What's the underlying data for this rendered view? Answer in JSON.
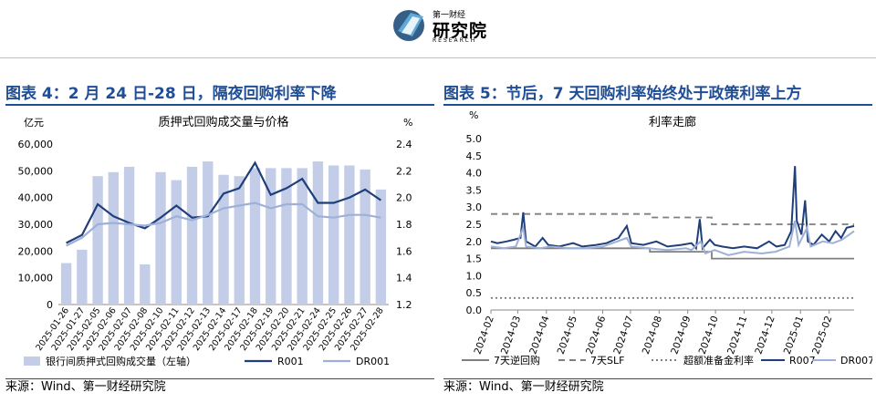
{
  "header": {
    "logo_icon": "globe-book-icon",
    "logo_small": "第一财经",
    "logo_main": "研究院",
    "logo_en": "RESEARCH"
  },
  "left": {
    "title": "图表 4：2 月 24 日-28 日，隔夜回购利率下降",
    "source": "来源：Wind、第一财经研究院",
    "chart_data": {
      "type": "bar",
      "title": "质押式回购成交量与价格",
      "y_left_unit": "亿元",
      "y_right_unit": "%",
      "y_left_ticks": [
        "0",
        "10,000",
        "20,000",
        "30,000",
        "40,000",
        "50,000",
        "60,000"
      ],
      "y_right_ticks": [
        "1.2",
        "1.4",
        "1.6",
        "1.8",
        "2.0",
        "2.2",
        "2.4"
      ],
      "ylim_left": [
        0,
        60000
      ],
      "ylim_right": [
        1.2,
        2.4
      ],
      "categories": [
        "2025-01-26",
        "2025-01-27",
        "2025-02-05",
        "2025-02-06",
        "2025-02-07",
        "2025-02-08",
        "2025-02-10",
        "2025-02-11",
        "2025-02-12",
        "2025-02-13",
        "2025-02-14",
        "2025-02-17",
        "2025-02-18",
        "2025-02-19",
        "2025-02-20",
        "2025-02-21",
        "2025-02-24",
        "2025-02-25",
        "2025-02-26",
        "2025-02-27",
        "2025-02-28"
      ],
      "series": [
        {
          "name": "银行间质押式回购成交量（左轴）",
          "type": "bar",
          "axis": "left",
          "color": "#c3cde8",
          "values": [
            15500,
            20500,
            48000,
            49500,
            51500,
            15000,
            49500,
            46500,
            51500,
            53500,
            48500,
            48000,
            51000,
            51000,
            51000,
            51000,
            53500,
            52000,
            52000,
            50500,
            43000
          ]
        },
        {
          "name": "R001",
          "type": "line",
          "axis": "right",
          "color": "#1f3f7a",
          "values": [
            1.66,
            1.72,
            1.95,
            1.86,
            1.81,
            1.77,
            1.85,
            1.94,
            1.85,
            1.86,
            2.03,
            2.07,
            2.26,
            2.02,
            2.07,
            2.14,
            1.96,
            1.96,
            2.0,
            2.06,
            1.98
          ]
        },
        {
          "name": "DR001",
          "type": "line",
          "axis": "right",
          "color": "#9fb0d8",
          "values": [
            1.64,
            1.7,
            1.8,
            1.81,
            1.8,
            1.79,
            1.81,
            1.86,
            1.83,
            1.87,
            1.92,
            1.94,
            1.96,
            1.92,
            1.95,
            1.95,
            1.86,
            1.85,
            1.87,
            1.87,
            1.85
          ]
        }
      ]
    }
  },
  "right": {
    "title": "图表 5：节后，7 天回购利率始终处于政策利率上方",
    "source": "来源：Wind、第一财经研究院",
    "chart_data": {
      "type": "line",
      "title": "利率走廊",
      "y_unit": "%",
      "y_ticks": [
        "0.0",
        "0.5",
        "1.0",
        "1.5",
        "2.0",
        "2.5",
        "3.0",
        "3.5",
        "4.0",
        "4.5",
        "5.0"
      ],
      "ylim": [
        0,
        5
      ],
      "x_ticks": [
        "2024-02",
        "2024-03",
        "2024-04",
        "2024-05",
        "2024-06",
        "2024-07",
        "2024-08",
        "2024-09",
        "2024-10",
        "2024-11",
        "2024-12",
        "2025-01",
        "2025-02"
      ],
      "series": [
        {
          "name": "7天逆回购",
          "style": "solid",
          "color": "#7f7f7f",
          "points": [
            [
              "2024-02-01",
              1.8
            ],
            [
              "2024-07-22",
              1.8
            ],
            [
              "2024-07-22",
              1.7
            ],
            [
              "2024-09-27",
              1.7
            ],
            [
              "2024-09-27",
              1.5
            ],
            [
              "2025-02-28",
              1.5
            ]
          ]
        },
        {
          "name": "7天SLF",
          "style": "dashed",
          "color": "#7f7f7f",
          "points": [
            [
              "2024-02-01",
              2.8
            ],
            [
              "2024-07-22",
              2.8
            ],
            [
              "2024-07-22",
              2.7
            ],
            [
              "2024-09-27",
              2.7
            ],
            [
              "2024-09-27",
              2.5
            ],
            [
              "2025-02-28",
              2.5
            ]
          ]
        },
        {
          "name": "超额准备金利率",
          "style": "dotted",
          "color": "#7f7f7f",
          "points": [
            [
              "2024-02-01",
              0.35
            ],
            [
              "2025-02-28",
              0.35
            ]
          ]
        },
        {
          "name": "R007",
          "style": "solid",
          "color": "#1f3f7a",
          "points": [
            [
              "2024-02-01",
              2.0
            ],
            [
              "2024-02-08",
              1.95
            ],
            [
              "2024-02-18",
              2.0
            ],
            [
              "2024-02-26",
              2.05
            ],
            [
              "2024-03-04",
              2.1
            ],
            [
              "2024-03-07",
              2.85
            ],
            [
              "2024-03-10",
              2.0
            ],
            [
              "2024-03-20",
              1.85
            ],
            [
              "2024-03-28",
              2.1
            ],
            [
              "2024-04-03",
              1.9
            ],
            [
              "2024-04-15",
              1.85
            ],
            [
              "2024-04-30",
              1.95
            ],
            [
              "2024-05-10",
              1.85
            ],
            [
              "2024-05-25",
              1.9
            ],
            [
              "2024-06-05",
              1.95
            ],
            [
              "2024-06-18",
              2.1
            ],
            [
              "2024-06-27",
              2.45
            ],
            [
              "2024-07-02",
              1.95
            ],
            [
              "2024-07-15",
              1.9
            ],
            [
              "2024-07-29",
              2.0
            ],
            [
              "2024-08-10",
              1.85
            ],
            [
              "2024-08-25",
              1.9
            ],
            [
              "2024-09-05",
              1.95
            ],
            [
              "2024-09-10",
              1.8
            ],
            [
              "2024-09-14",
              2.65
            ],
            [
              "2024-09-17",
              1.8
            ],
            [
              "2024-09-25",
              2.05
            ],
            [
              "2024-09-30",
              1.9
            ],
            [
              "2024-10-08",
              1.85
            ],
            [
              "2024-10-20",
              1.8
            ],
            [
              "2024-11-01",
              1.85
            ],
            [
              "2024-11-15",
              1.8
            ],
            [
              "2024-11-28",
              2.0
            ],
            [
              "2024-12-06",
              1.85
            ],
            [
              "2024-12-15",
              1.9
            ],
            [
              "2024-12-22",
              2.3
            ],
            [
              "2024-12-26",
              4.2
            ],
            [
              "2024-12-28",
              2.6
            ],
            [
              "2025-01-02",
              2.2
            ],
            [
              "2025-01-06",
              3.2
            ],
            [
              "2025-01-09",
              2.0
            ],
            [
              "2025-01-15",
              1.9
            ],
            [
              "2025-01-24",
              2.2
            ],
            [
              "2025-02-01",
              2.0
            ],
            [
              "2025-02-08",
              2.3
            ],
            [
              "2025-02-14",
              2.1
            ],
            [
              "2025-02-20",
              2.4
            ],
            [
              "2025-02-28",
              2.45
            ]
          ]
        },
        {
          "name": "DR007",
          "style": "solid",
          "color": "#9fb0d8",
          "points": [
            [
              "2024-02-01",
              1.85
            ],
            [
              "2024-02-15",
              1.8
            ],
            [
              "2024-02-28",
              1.85
            ],
            [
              "2024-03-07",
              2.4
            ],
            [
              "2024-03-10",
              1.85
            ],
            [
              "2024-03-25",
              1.8
            ],
            [
              "2024-04-05",
              1.85
            ],
            [
              "2024-04-25",
              1.8
            ],
            [
              "2024-05-15",
              1.8
            ],
            [
              "2024-06-01",
              1.85
            ],
            [
              "2024-06-27",
              2.1
            ],
            [
              "2024-07-02",
              1.85
            ],
            [
              "2024-07-20",
              1.8
            ],
            [
              "2024-08-10",
              1.75
            ],
            [
              "2024-08-30",
              1.8
            ],
            [
              "2024-09-05",
              1.75
            ],
            [
              "2024-09-15",
              2.0
            ],
            [
              "2024-09-20",
              1.65
            ],
            [
              "2024-09-30",
              1.75
            ],
            [
              "2024-10-15",
              1.6
            ],
            [
              "2024-11-01",
              1.7
            ],
            [
              "2024-11-20",
              1.65
            ],
            [
              "2024-12-05",
              1.7
            ],
            [
              "2024-12-20",
              1.85
            ],
            [
              "2024-12-26",
              2.6
            ],
            [
              "2024-12-30",
              1.9
            ],
            [
              "2025-01-08",
              2.4
            ],
            [
              "2025-01-12",
              1.85
            ],
            [
              "2025-01-25",
              2.0
            ],
            [
              "2025-02-05",
              1.95
            ],
            [
              "2025-02-15",
              2.05
            ],
            [
              "2025-02-28",
              2.3
            ]
          ]
        }
      ]
    }
  }
}
